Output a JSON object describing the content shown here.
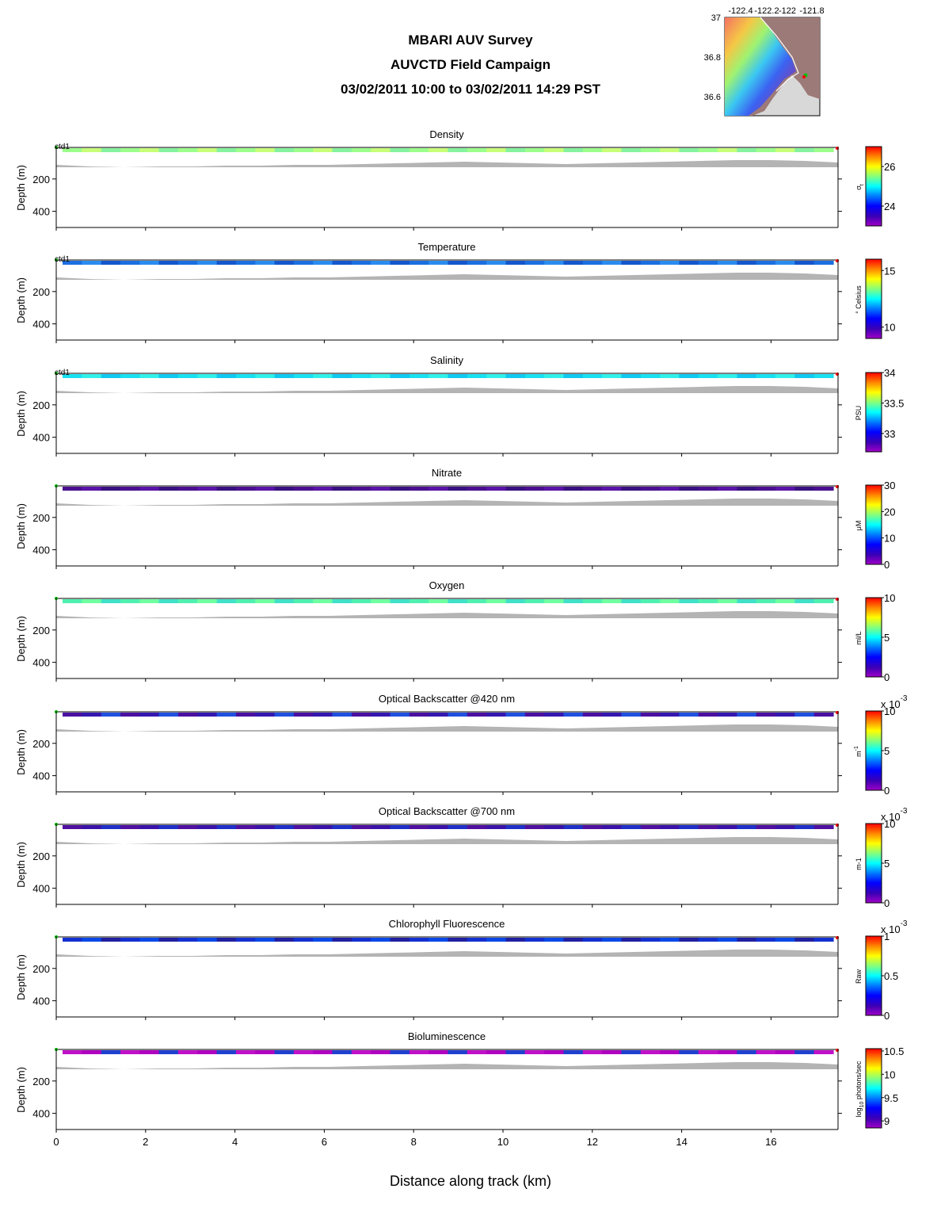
{
  "header": {
    "title_line1": "MBARI AUV Survey",
    "title_line2": "AUVCTD Field Campaign",
    "title_line3": "03/02/2011 10:00  to 03/02/2011 14:29 PST"
  },
  "inset_map": {
    "lon_ticks": [
      "-122.4",
      "-122.2",
      "-122",
      "-121.8"
    ],
    "lat_ticks": [
      "37",
      "36.8",
      "36.6"
    ],
    "colors": {
      "land": "#9c7a78",
      "coast": "#ffffff",
      "deep": "#7e4fb0"
    }
  },
  "x_axis": {
    "label": "Distance along track (km)",
    "ticks": [
      "0",
      "2",
      "4",
      "6",
      "8",
      "10",
      "12",
      "14",
      "16"
    ],
    "range": [
      0,
      17.5
    ]
  },
  "chart_data": [
    {
      "type": "heatmap",
      "title": "Density",
      "station_label": "ctd1",
      "ylabel": "Depth (m)",
      "yticks": [
        "200",
        "400"
      ],
      "ylim": [
        0,
        500
      ],
      "colorbar": {
        "ticks": [
          "26",
          "24"
        ],
        "tick_values": [
          26,
          24
        ],
        "range": [
          23,
          27
        ],
        "units_text": "σ",
        "units_sub": "t"
      },
      "band_colors": [
        "#9cff8c",
        "#c8ff78",
        "#86f29e"
      ]
    },
    {
      "type": "heatmap",
      "title": "Temperature",
      "station_label": "ctd1",
      "ylabel": "Depth (m)",
      "yticks": [
        "200",
        "400"
      ],
      "ylim": [
        0,
        500
      ],
      "colorbar": {
        "ticks": [
          "15",
          "10"
        ],
        "tick_values": [
          15,
          10
        ],
        "range": [
          9,
          16
        ],
        "units_text": "° Celsius"
      },
      "band_colors": [
        "#1a6fe0",
        "#2a8cf0",
        "#1456cc"
      ]
    },
    {
      "type": "heatmap",
      "title": "Salinity",
      "station_label": "ctd1",
      "ylabel": "Depth (m)",
      "yticks": [
        "200",
        "400"
      ],
      "ylim": [
        0,
        500
      ],
      "colorbar": {
        "ticks": [
          "34",
          "33.5",
          "33"
        ],
        "tick_values": [
          34,
          33.5,
          33
        ],
        "range": [
          32.7,
          34
        ],
        "units_text": "PSU"
      },
      "band_colors": [
        "#18e0f0",
        "#30f0e8",
        "#10c8f0"
      ]
    },
    {
      "type": "heatmap",
      "title": "Nitrate",
      "ylabel": "Depth (m)",
      "yticks": [
        "200",
        "400"
      ],
      "ylim": [
        0,
        500
      ],
      "colorbar": {
        "ticks": [
          "30",
          "20",
          "10",
          "0"
        ],
        "tick_values": [
          30,
          20,
          10,
          0
        ],
        "range": [
          0,
          30
        ],
        "units_text": "μM"
      },
      "band_colors": [
        "#4a1090",
        "#5a14a8",
        "#3a1080"
      ]
    },
    {
      "type": "heatmap",
      "title": "Oxygen",
      "ylabel": "Depth (m)",
      "yticks": [
        "200",
        "400"
      ],
      "ylim": [
        0,
        500
      ],
      "colorbar": {
        "ticks": [
          "10",
          "5",
          "0"
        ],
        "tick_values": [
          10,
          5,
          0
        ],
        "range": [
          0,
          10
        ],
        "units_text": "ml/L"
      },
      "band_colors": [
        "#50f0b0",
        "#70ffa0",
        "#40e0c8"
      ]
    },
    {
      "type": "heatmap",
      "title": "Optical Backscatter @420 nm",
      "ylabel": "Depth (m)",
      "yticks": [
        "200",
        "400"
      ],
      "ylim": [
        0,
        500
      ],
      "colorbar": {
        "ticks": [
          "10",
          "5",
          "0"
        ],
        "tick_values": [
          10,
          5,
          0
        ],
        "range": [
          0,
          10
        ],
        "units_text": "m",
        "units_sup": "-1",
        "multiplier": "x 10",
        "multiplier_exp": "-3"
      },
      "band_colors": [
        "#4a10a0",
        "#3418b0",
        "#2050e0"
      ]
    },
    {
      "type": "heatmap",
      "title": "Optical Backscatter @700 nm",
      "ylabel": "Depth (m)",
      "yticks": [
        "200",
        "400"
      ],
      "ylim": [
        0,
        500
      ],
      "colorbar": {
        "ticks": [
          "10",
          "5",
          "0"
        ],
        "tick_values": [
          10,
          5,
          0
        ],
        "range": [
          0,
          10
        ],
        "units_text": "m-1",
        "multiplier": "x 10",
        "multiplier_exp": "-3"
      },
      "band_colors": [
        "#5010a0",
        "#3a12a8",
        "#2030c8"
      ]
    },
    {
      "type": "heatmap",
      "title": "Chlorophyll Fluorescence",
      "ylabel": "Depth (m)",
      "yticks": [
        "200",
        "400"
      ],
      "ylim": [
        0,
        500
      ],
      "colorbar": {
        "ticks": [
          "1",
          "0.5",
          "0"
        ],
        "tick_values": [
          1,
          0.5,
          0
        ],
        "range": [
          0,
          1
        ],
        "units_text": "Raw",
        "multiplier": "x 10",
        "multiplier_exp": "-3"
      },
      "band_colors": [
        "#1430d0",
        "#0a48e8",
        "#2020a0"
      ]
    },
    {
      "type": "heatmap",
      "title": "Bioluminescence",
      "ylabel": "Depth (m)",
      "yticks": [
        "200",
        "400"
      ],
      "ylim": [
        0,
        500
      ],
      "colorbar": {
        "ticks": [
          "10.5",
          "10",
          "9.5",
          "9"
        ],
        "tick_values": [
          10.5,
          10,
          9.5,
          9
        ],
        "range": [
          8.85,
          10.55
        ],
        "units_text": "log",
        "units_sub": "10",
        "units_after": " photons/sec"
      },
      "band_colors": [
        "#c010c8",
        "#b000c0",
        "#2040d0"
      ]
    }
  ]
}
